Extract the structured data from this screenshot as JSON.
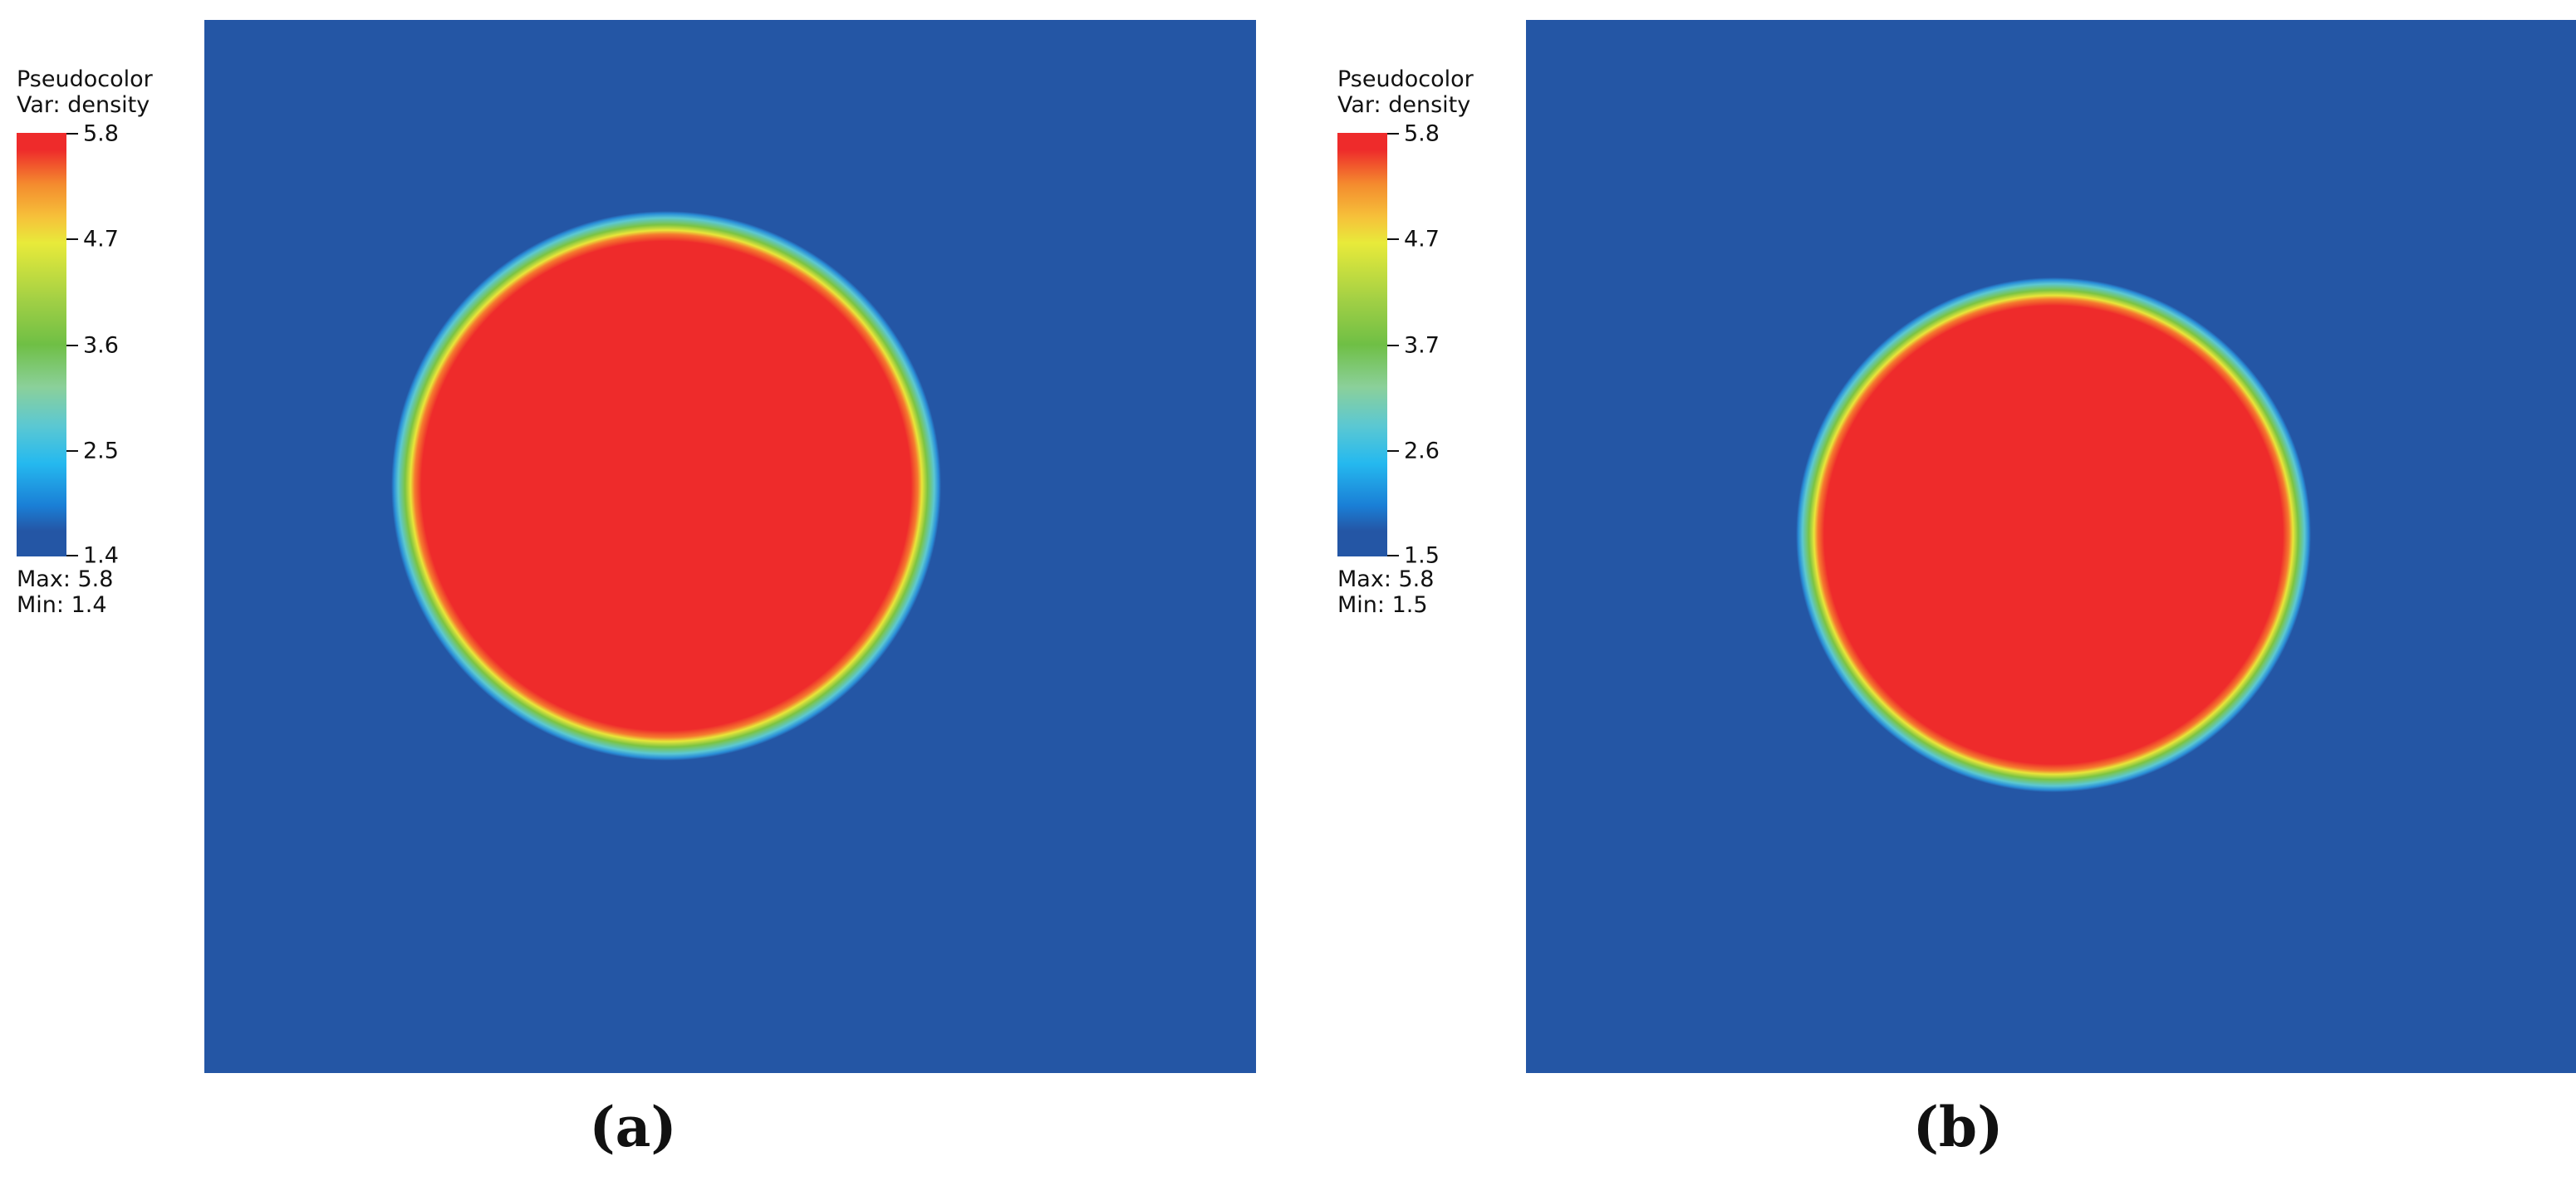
{
  "chart_data": [
    {
      "type": "heatmap",
      "caption": "(a)",
      "legend": {
        "title": "Pseudocolor",
        "variable": "Var: density",
        "ticks": [
          "5.8",
          "4.7",
          "3.6",
          "2.5",
          "1.4"
        ],
        "max_label": "Max:  5.8",
        "min_label": "Min:  1.4"
      },
      "colormap": [
        "#2456a5",
        "#25b9ef",
        "#6fbf45",
        "#e8ea3a",
        "#ee2b2b"
      ],
      "range": [
        1.4,
        5.8
      ],
      "field": {
        "shape": "circular disk",
        "inside_value": 5.8,
        "outside_value": 1.4,
        "center_fraction": [
          0.437,
          0.217
        ],
        "radius_fraction": 0.262
      }
    },
    {
      "type": "heatmap",
      "caption": "(b)",
      "legend": {
        "title": "Pseudocolor",
        "variable": "Var: density",
        "ticks": [
          "5.8",
          "4.7",
          "3.7",
          "2.6",
          "1.5"
        ],
        "max_label": "Max:  5.8",
        "min_label": "Min:  1.5"
      },
      "colormap": [
        "#2456a5",
        "#25b9ef",
        "#6fbf45",
        "#e8ea3a",
        "#ee2b2b"
      ],
      "range": [
        1.5,
        5.8
      ],
      "field": {
        "shape": "circular disk",
        "inside_value": 5.8,
        "outside_value": 1.5,
        "center_fraction": [
          0.505,
          0.25
        ],
        "radius_fraction": 0.245
      }
    }
  ]
}
